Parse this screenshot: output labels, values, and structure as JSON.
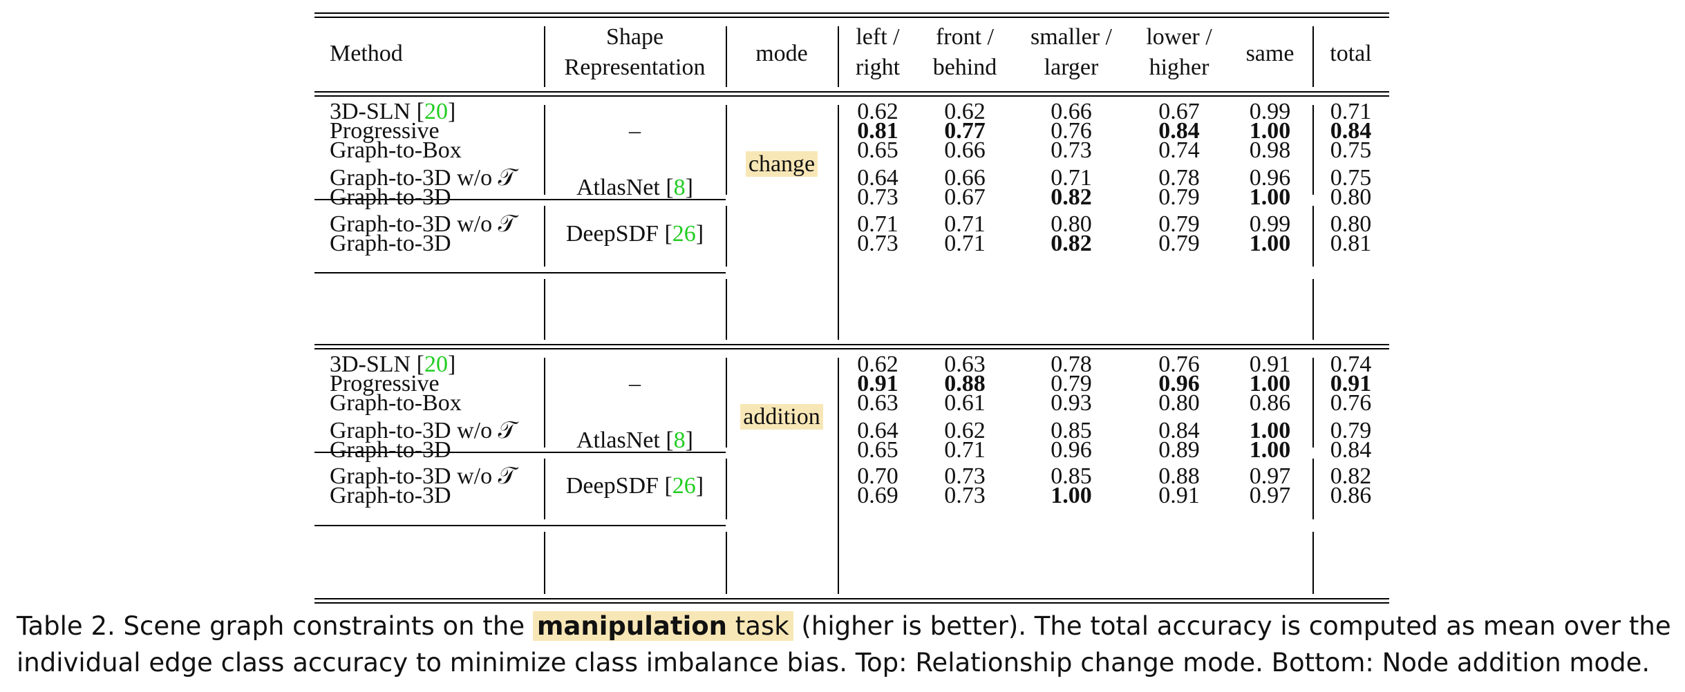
{
  "table": {
    "headers": {
      "method": "Method",
      "shape_line1": "Shape",
      "shape_line2": "Representation",
      "mode": "mode",
      "col1_line1": "left /",
      "col1_line2": "right",
      "col2_line1": "front /",
      "col2_line2": "behind",
      "col3_line1": "smaller /",
      "col3_line2": "larger",
      "col4_line1": "lower /",
      "col4_line2": "higher",
      "col5": "same",
      "col6": "total"
    },
    "sections": [
      {
        "mode": "change",
        "groups": [
          {
            "shape_name": "–",
            "shape_cite": "",
            "rows": [
              {
                "method": "3D-SLN",
                "cite": "20",
                "values": [
                  "0.62",
                  "0.62",
                  "0.66",
                  "0.67",
                  "0.99",
                  "0.71"
                ],
                "bold": [
                  false,
                  false,
                  false,
                  false,
                  false,
                  false
                ]
              },
              {
                "method": "Progressive",
                "cite": "",
                "values": [
                  "0.81",
                  "0.77",
                  "0.76",
                  "0.84",
                  "1.00",
                  "0.84"
                ],
                "bold": [
                  true,
                  true,
                  false,
                  true,
                  true,
                  true
                ]
              },
              {
                "method": "Graph-to-Box",
                "cite": "",
                "values": [
                  "0.65",
                  "0.66",
                  "0.73",
                  "0.74",
                  "0.98",
                  "0.75"
                ],
                "bold": [
                  false,
                  false,
                  false,
                  false,
                  false,
                  false
                ]
              }
            ]
          },
          {
            "shape_name": "AtlasNet",
            "shape_cite": "8",
            "rows": [
              {
                "method": "Graph-to-3D w/o 𝒯",
                "cite": "",
                "values": [
                  "0.64",
                  "0.66",
                  "0.71",
                  "0.78",
                  "0.96",
                  "0.75"
                ],
                "bold": [
                  false,
                  false,
                  false,
                  false,
                  false,
                  false
                ]
              },
              {
                "method": "Graph-to-3D",
                "cite": "",
                "values": [
                  "0.73",
                  "0.67",
                  "0.82",
                  "0.79",
                  "1.00",
                  "0.80"
                ],
                "bold": [
                  false,
                  false,
                  true,
                  false,
                  true,
                  false
                ]
              }
            ]
          },
          {
            "shape_name": "DeepSDF",
            "shape_cite": "26",
            "rows": [
              {
                "method": "Graph-to-3D w/o 𝒯",
                "cite": "",
                "values": [
                  "0.71",
                  "0.71",
                  "0.80",
                  "0.79",
                  "0.99",
                  "0.80"
                ],
                "bold": [
                  false,
                  false,
                  false,
                  false,
                  false,
                  false
                ]
              },
              {
                "method": "Graph-to-3D",
                "cite": "",
                "values": [
                  "0.73",
                  "0.71",
                  "0.82",
                  "0.79",
                  "1.00",
                  "0.81"
                ],
                "bold": [
                  false,
                  false,
                  true,
                  false,
                  true,
                  false
                ]
              }
            ]
          }
        ]
      },
      {
        "mode": "addition",
        "groups": [
          {
            "shape_name": "–",
            "shape_cite": "",
            "rows": [
              {
                "method": "3D-SLN",
                "cite": "20",
                "values": [
                  "0.62",
                  "0.63",
                  "0.78",
                  "0.76",
                  "0.91",
                  "0.74"
                ],
                "bold": [
                  false,
                  false,
                  false,
                  false,
                  false,
                  false
                ]
              },
              {
                "method": "Progressive",
                "cite": "",
                "values": [
                  "0.91",
                  "0.88",
                  "0.79",
                  "0.96",
                  "1.00",
                  "0.91"
                ],
                "bold": [
                  true,
                  true,
                  false,
                  true,
                  true,
                  true
                ]
              },
              {
                "method": "Graph-to-Box",
                "cite": "",
                "values": [
                  "0.63",
                  "0.61",
                  "0.93",
                  "0.80",
                  "0.86",
                  "0.76"
                ],
                "bold": [
                  false,
                  false,
                  false,
                  false,
                  false,
                  false
                ]
              }
            ]
          },
          {
            "shape_name": "AtlasNet",
            "shape_cite": "8",
            "rows": [
              {
                "method": "Graph-to-3D w/o 𝒯",
                "cite": "",
                "values": [
                  "0.64",
                  "0.62",
                  "0.85",
                  "0.84",
                  "1.00",
                  "0.79"
                ],
                "bold": [
                  false,
                  false,
                  false,
                  false,
                  true,
                  false
                ]
              },
              {
                "method": "Graph-to-3D",
                "cite": "",
                "values": [
                  "0.65",
                  "0.71",
                  "0.96",
                  "0.89",
                  "1.00",
                  "0.84"
                ],
                "bold": [
                  false,
                  false,
                  false,
                  false,
                  true,
                  false
                ]
              }
            ]
          },
          {
            "shape_name": "DeepSDF",
            "shape_cite": "26",
            "rows": [
              {
                "method": "Graph-to-3D w/o 𝒯",
                "cite": "",
                "values": [
                  "0.70",
                  "0.73",
                  "0.85",
                  "0.88",
                  "0.97",
                  "0.82"
                ],
                "bold": [
                  false,
                  false,
                  false,
                  false,
                  false,
                  false
                ]
              },
              {
                "method": "Graph-to-3D",
                "cite": "",
                "values": [
                  "0.69",
                  "0.73",
                  "1.00",
                  "0.91",
                  "0.97",
                  "0.86"
                ],
                "bold": [
                  false,
                  false,
                  true,
                  false,
                  false,
                  false
                ]
              }
            ]
          }
        ]
      }
    ]
  },
  "caption": {
    "prefix": "Table 2. Scene graph constraints on the ",
    "highlight_bold": "manipulation",
    "highlight_rest": " task",
    "suffix": " (higher is better).  The total accuracy is computed as mean over the individual edge class accuracy to minimize class imbalance bias. Top: Relationship change mode. Bottom: Node addition mode."
  }
}
